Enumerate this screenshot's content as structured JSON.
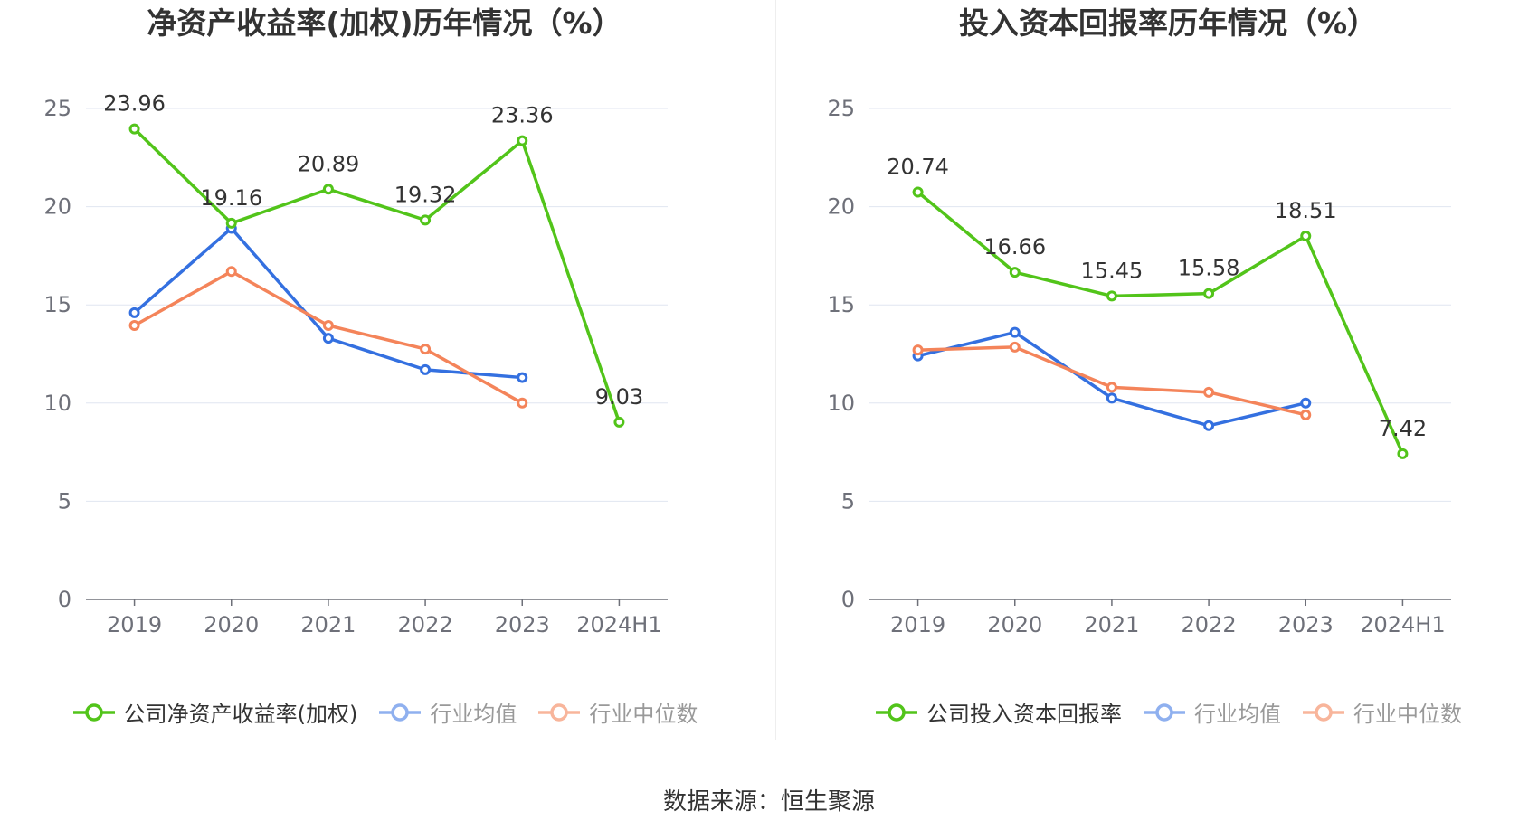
{
  "source_text": "数据来源：恒生聚源",
  "chart_data": [
    {
      "type": "line",
      "title": "净资产收益率(加权)历年情况（%）",
      "categories": [
        "2019",
        "2020",
        "2021",
        "2022",
        "2023",
        "2024H1"
      ],
      "y_ticks": [
        "0",
        "5",
        "10",
        "15",
        "20",
        "25"
      ],
      "ylim": [
        0,
        25
      ],
      "grid": true,
      "legend_position": "bottom",
      "series": [
        {
          "name": "公司净资产收益率(加权)",
          "color": "#52c41a",
          "values": [
            23.96,
            19.16,
            20.89,
            19.32,
            23.36,
            9.03
          ],
          "labels": [
            "23.96",
            "19.16",
            "20.89",
            "19.32",
            "23.36",
            "9.03"
          ]
        },
        {
          "name": "行业均值",
          "color": "#3470e0",
          "values": [
            14.6,
            18.9,
            13.3,
            11.7,
            11.3,
            null
          ]
        },
        {
          "name": "行业中位数",
          "color": "#f4845a",
          "values": [
            13.95,
            16.7,
            13.95,
            12.75,
            10.0,
            null
          ]
        }
      ]
    },
    {
      "type": "line",
      "title": "投入资本回报率历年情况（%）",
      "categories": [
        "2019",
        "2020",
        "2021",
        "2022",
        "2023",
        "2024H1"
      ],
      "y_ticks": [
        "0",
        "5",
        "10",
        "15",
        "20",
        "25"
      ],
      "ylim": [
        0,
        25
      ],
      "grid": true,
      "legend_position": "bottom",
      "series": [
        {
          "name": "公司投入资本回报率",
          "color": "#52c41a",
          "values": [
            20.74,
            16.66,
            15.45,
            15.58,
            18.51,
            7.42
          ],
          "labels": [
            "20.74",
            "16.66",
            "15.45",
            "15.58",
            "18.51",
            "7.42"
          ]
        },
        {
          "name": "行业均值",
          "color": "#3470e0",
          "values": [
            12.4,
            13.6,
            10.25,
            8.85,
            10.0,
            null
          ]
        },
        {
          "name": "行业中位数",
          "color": "#f4845a",
          "values": [
            12.7,
            12.85,
            10.8,
            10.55,
            9.4,
            null
          ]
        }
      ]
    }
  ]
}
